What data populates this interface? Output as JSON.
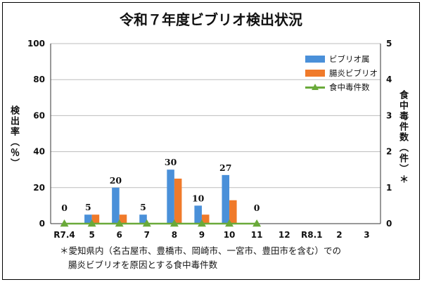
{
  "title": "令和７年度ビブリオ検出状況",
  "colors": {
    "vibrio": "#4a90d9",
    "parahaemolyticus": "#f07a2a",
    "food_poisoning": "#6aaa3a"
  },
  "notes": {
    "line1": "＊愛知県内（名古屋市、豊橋市、岡崎市、一宮市、豊田市を含む）での",
    "line2": "腸炎ビブリオを原因とする食中毒件数"
  },
  "chart_data": {
    "type": "bar",
    "title": "令和７年度ビブリオ検出状況",
    "categories": [
      "R7.4",
      "5",
      "6",
      "7",
      "8",
      "9",
      "10",
      "11",
      "12",
      "R8.1",
      "2",
      "3"
    ],
    "series": [
      {
        "name": "ビブリオ属",
        "axis": "left",
        "type": "bar",
        "values": [
          0,
          5,
          20,
          5,
          30,
          10,
          27,
          0,
          null,
          null,
          null,
          null
        ]
      },
      {
        "name": "腸炎ビブリオ",
        "axis": "left",
        "type": "bar",
        "values": [
          0,
          5,
          5,
          0,
          25,
          5,
          13,
          0,
          null,
          null,
          null,
          null
        ]
      },
      {
        "name": "食中毒件数",
        "axis": "right",
        "type": "line",
        "values": [
          0,
          0,
          0,
          0,
          0,
          0,
          0,
          0,
          null,
          null,
          null,
          null
        ]
      }
    ],
    "data_labels": [
      {
        "category": "R7.4",
        "text": "0"
      },
      {
        "category": "5",
        "text": "5"
      },
      {
        "category": "6",
        "text": "20"
      },
      {
        "category": "7",
        "text": "5"
      },
      {
        "category": "8",
        "text": "30"
      },
      {
        "category": "9",
        "text": "10"
      },
      {
        "category": "10",
        "text": "27"
      },
      {
        "category": "11",
        "text": "0"
      }
    ],
    "ylabel": "検出率（％）",
    "y2label": "食中毒件数（件）＊",
    "ylim": [
      0,
      100
    ],
    "yticks": [
      0,
      20,
      40,
      60,
      80,
      100
    ],
    "y2lim": [
      0,
      5
    ],
    "y2ticks": [
      0,
      1,
      2,
      3,
      4,
      5
    ],
    "grid": true,
    "legend": "top-right"
  }
}
